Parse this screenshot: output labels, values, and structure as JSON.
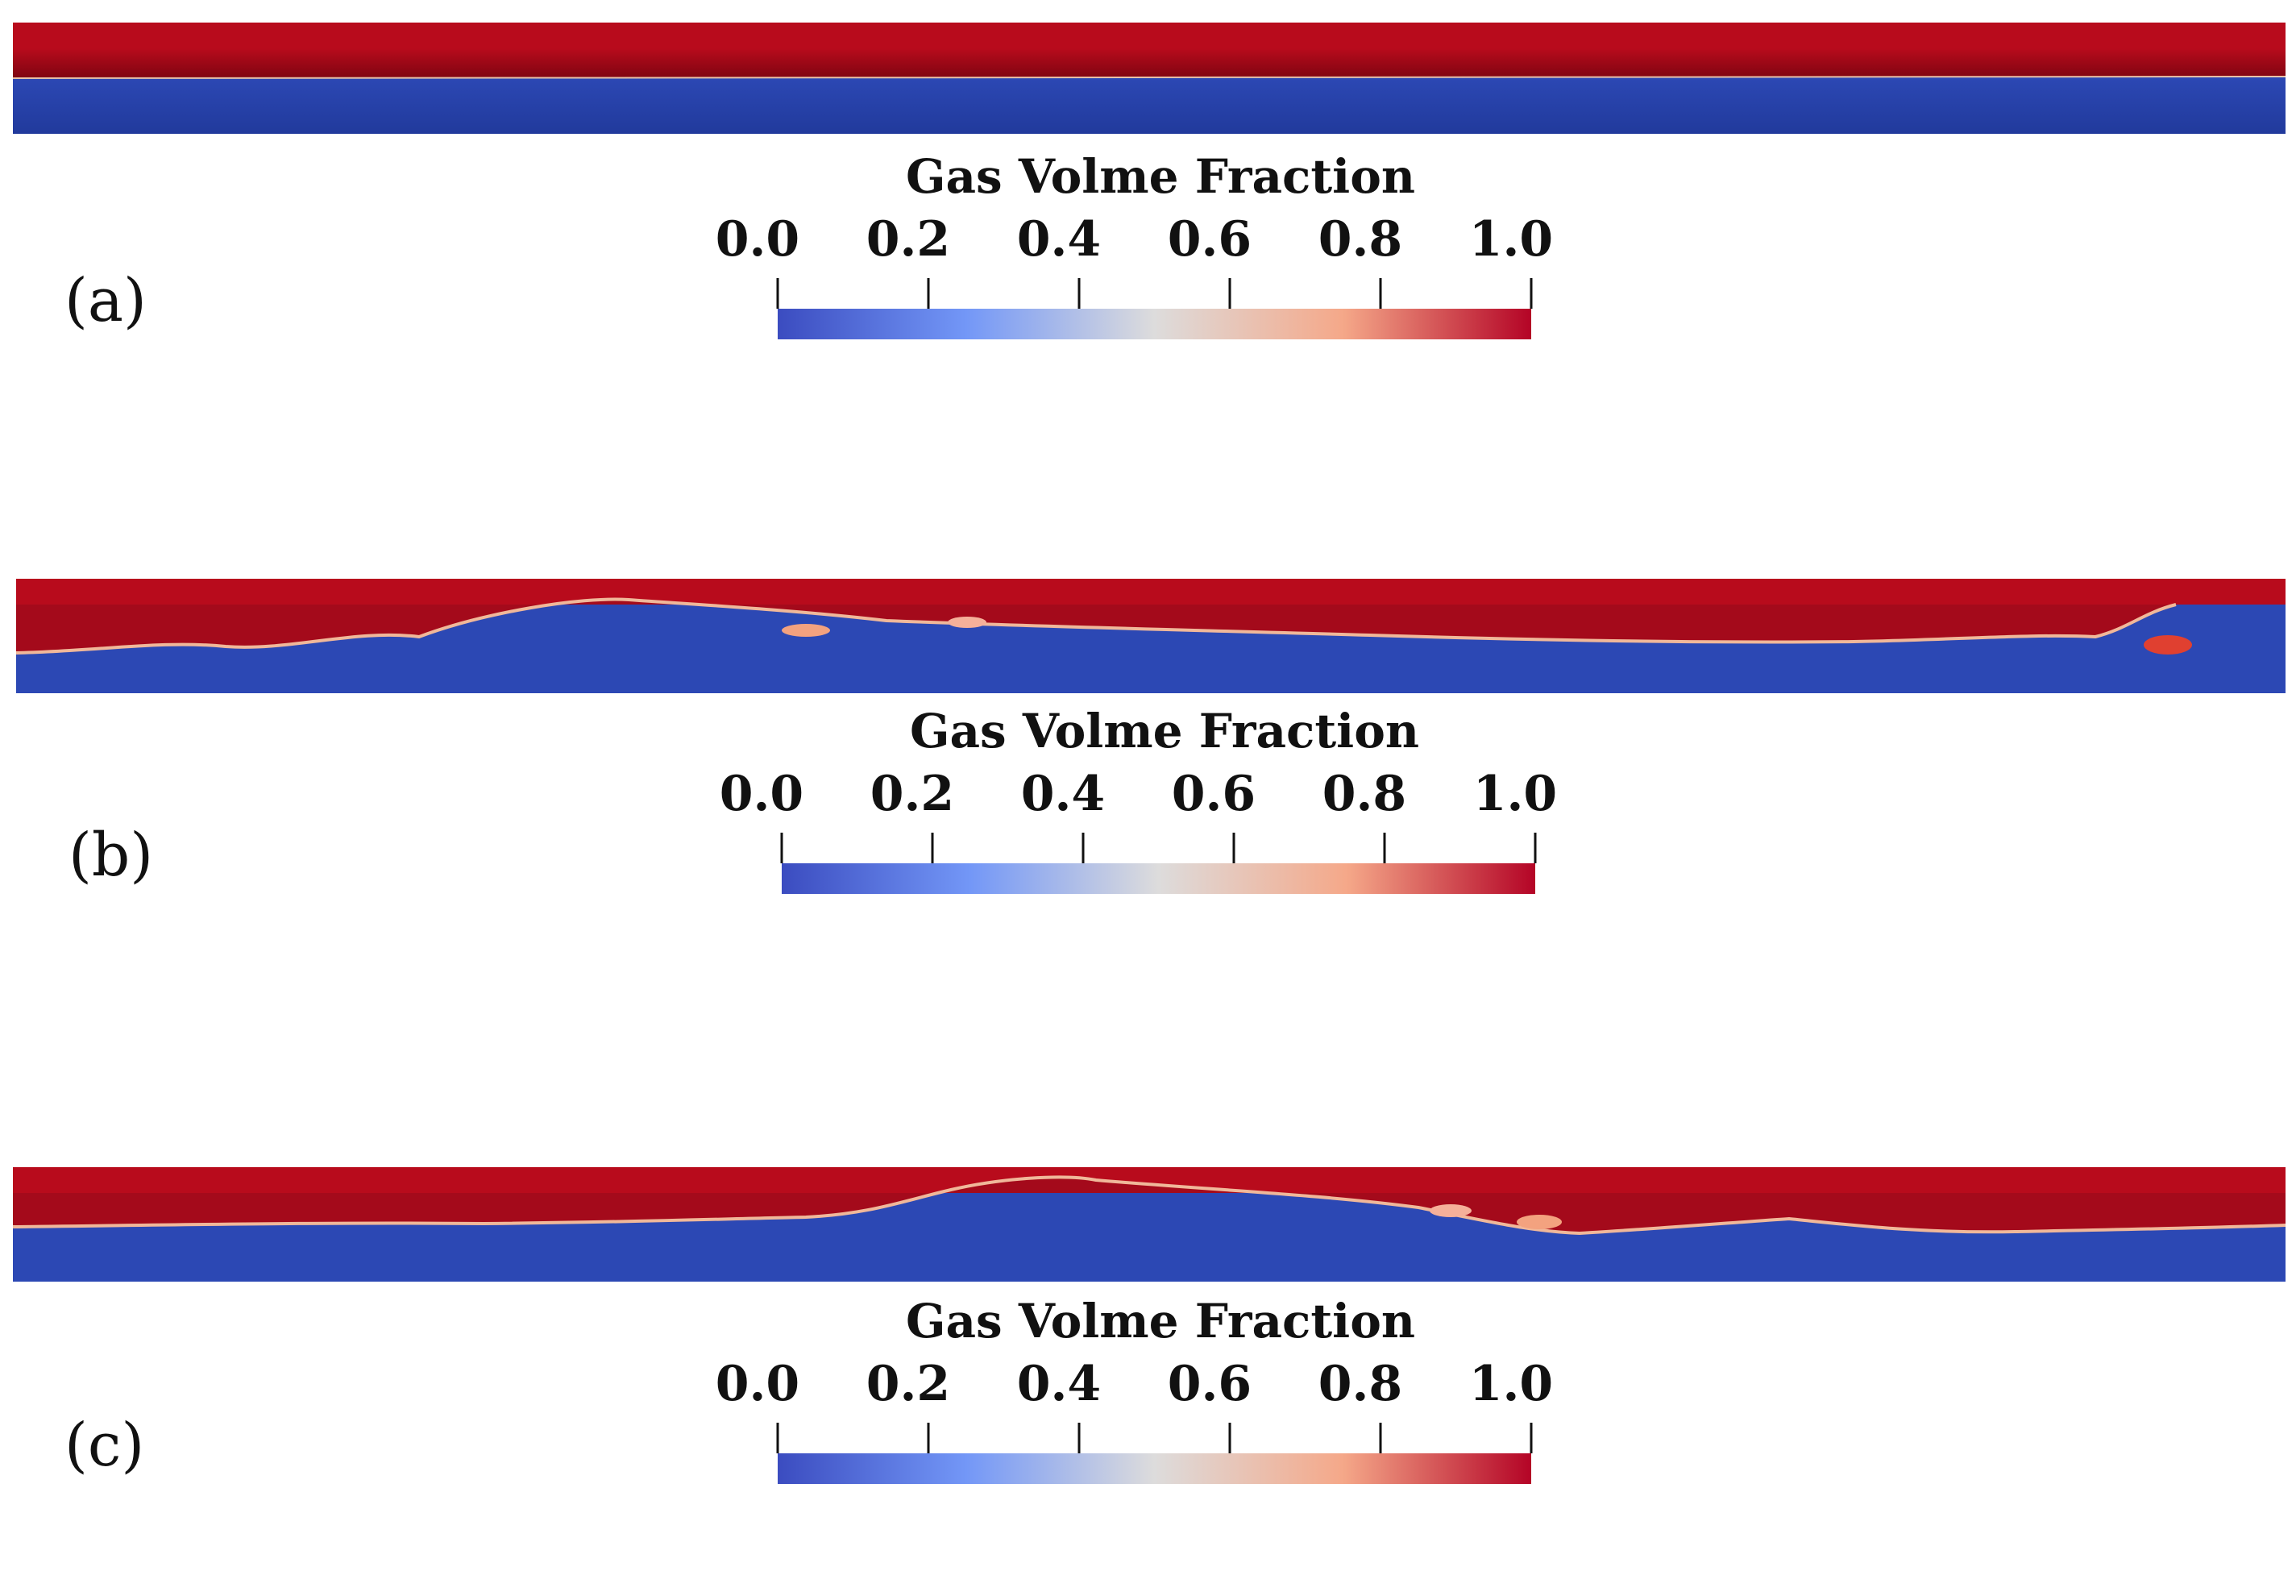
{
  "colorbar": {
    "title": "Gas Volme Fraction",
    "ticks": [
      "0.0",
      "0.2",
      "0.4",
      "0.6",
      "0.8",
      "1.0"
    ],
    "range": [
      0.0,
      1.0
    ],
    "colormap": [
      "#3b4cc0",
      "#7397f7",
      "#dddcdc",
      "#f5a889",
      "#b40426"
    ]
  },
  "panels": [
    {
      "label": "(a)"
    },
    {
      "label": "(b)"
    },
    {
      "label": "(c)"
    }
  ]
}
